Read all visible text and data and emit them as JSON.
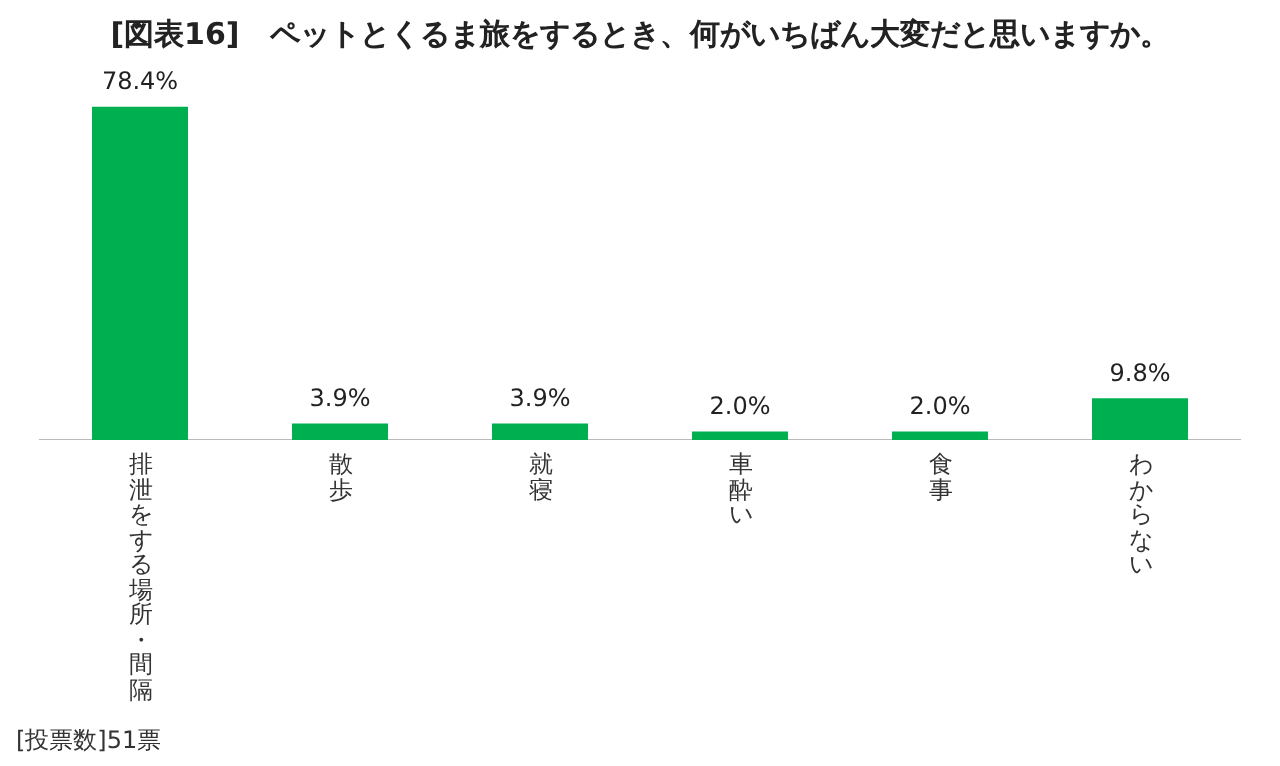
{
  "chart_data": {
    "type": "bar",
    "title": "[図表16]　ペットとくるま旅をするとき、何がいちばん大変だと思いますか。",
    "categories": [
      "排泄をする場所・間隔",
      "散歩",
      "就寝",
      "車酔い",
      "食事",
      "わからない"
    ],
    "values": [
      78.4,
      3.9,
      3.9,
      2.0,
      2.0,
      9.8
    ],
    "value_labels": [
      "78.4%",
      "3.9%",
      "3.9%",
      "2.0%",
      "2.0%",
      "9.8%"
    ],
    "color": "#00b050",
    "tick_labels": "x",
    "grid": false,
    "legend": false,
    "annotations": [
      "[投票数]51票"
    ]
  }
}
